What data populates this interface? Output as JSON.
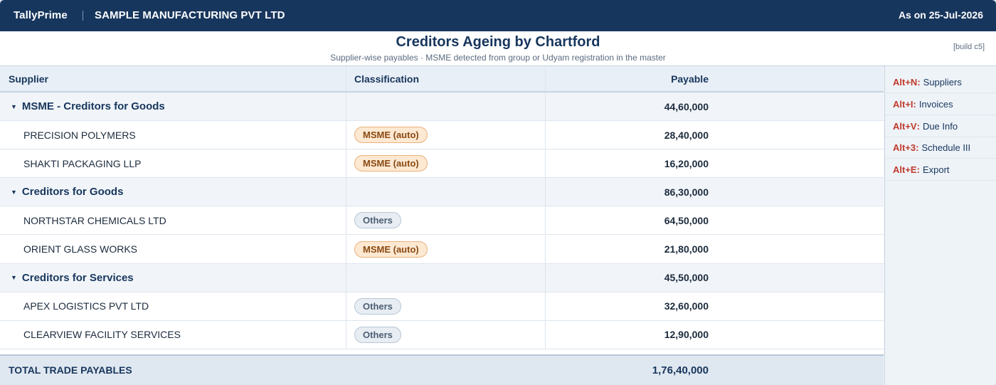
{
  "topbar": {
    "brand": "TallyPrime",
    "company": "SAMPLE MANUFACTURING PVT LTD",
    "as_on": "As on 25-Jul-2026"
  },
  "report": {
    "title": "Creditors Ageing by Chartford",
    "subtitle": "Supplier-wise payables · MSME detected from group or Udyam registration in the master",
    "build": "[build c5]"
  },
  "columns": {
    "supplier": "Supplier",
    "classification": "Classification",
    "payable": "Payable"
  },
  "rows": [
    {
      "type": "group",
      "name": "MSME - Creditors for Goods",
      "classification": "",
      "payable": "44,60,000"
    },
    {
      "type": "item",
      "name": "PRECISION POLYMERS",
      "classification": "MSME (auto)",
      "payable": "28,40,000"
    },
    {
      "type": "item",
      "name": "SHAKTI PACKAGING LLP",
      "classification": "MSME (auto)",
      "payable": "16,20,000"
    },
    {
      "type": "group",
      "name": "Creditors for Goods",
      "classification": "",
      "payable": "86,30,000"
    },
    {
      "type": "item",
      "name": "NORTHSTAR CHEMICALS LTD",
      "classification": "Others",
      "payable": "64,50,000"
    },
    {
      "type": "item",
      "name": "ORIENT GLASS WORKS",
      "classification": "MSME (auto)",
      "payable": "21,80,000"
    },
    {
      "type": "group",
      "name": "Creditors for Services",
      "classification": "",
      "payable": "45,50,000"
    },
    {
      "type": "item",
      "name": "APEX LOGISTICS PVT LTD",
      "classification": "Others",
      "payable": "32,60,000"
    },
    {
      "type": "item",
      "name": "CLEARVIEW FACILITY SERVICES",
      "classification": "Others",
      "payable": "12,90,000"
    }
  ],
  "total": {
    "label": "TOTAL TRADE PAYABLES",
    "payable": "1,76,40,000"
  },
  "shortcuts": [
    {
      "key": "Alt+N",
      "label": "Suppliers"
    },
    {
      "key": "Alt+I",
      "label": "Invoices"
    },
    {
      "key": "Alt+V",
      "label": "Due Info"
    },
    {
      "key": "Alt+3",
      "label": "Schedule III"
    },
    {
      "key": "Alt+E",
      "label": "Export"
    }
  ],
  "colors": {
    "brand_navy": "#17365d",
    "msme_badge": "#fde8d2",
    "others_badge": "#e7edf3",
    "shortcut_key": "#c0392b"
  }
}
